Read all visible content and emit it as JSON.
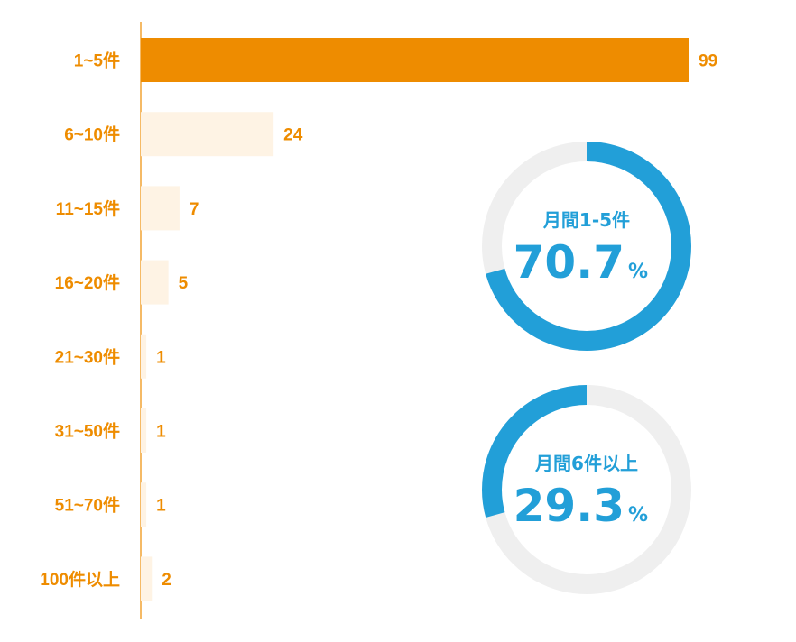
{
  "colors": {
    "accent_orange": "#ee8c00",
    "bar_light": "#fef3e4",
    "donut_blue": "#229fd8",
    "donut_track": "#efefef"
  },
  "chart_data": [
    {
      "type": "bar",
      "orientation": "horizontal",
      "categories": [
        "1~5件",
        "6~10件",
        "11~15件",
        "16~20件",
        "21~30件",
        "31~50件",
        "51~70件",
        "100件以上"
      ],
      "values": [
        99,
        24,
        7,
        5,
        1,
        1,
        1,
        2
      ],
      "highlight_index": 0,
      "xlim": [
        0,
        99
      ],
      "grid": false
    },
    {
      "type": "pie",
      "style": "donut",
      "title": "月間1-5件",
      "value": 70.7,
      "value_text": "70.7",
      "unit": "%"
    },
    {
      "type": "pie",
      "style": "donut",
      "title": "月間6件以上",
      "value": 29.3,
      "value_text": "29.3",
      "unit": "%"
    }
  ]
}
